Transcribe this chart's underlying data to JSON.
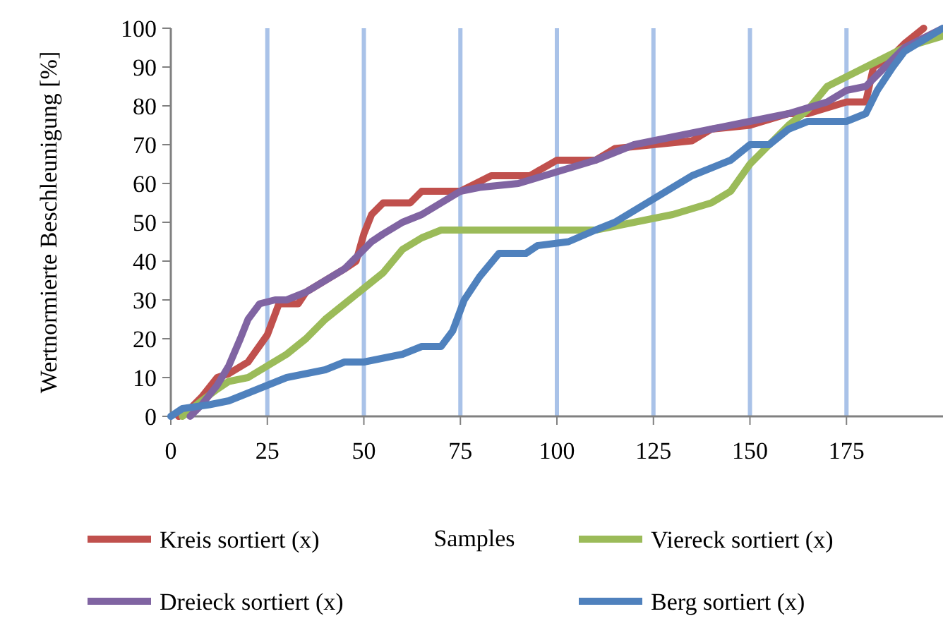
{
  "chart_data": {
    "type": "line",
    "xlabel": "Samples",
    "ylabel": "Wertnormierte Beschleunigung  [%]",
    "xlim": [
      0,
      200
    ],
    "xticks": [
      0,
      25,
      50,
      75,
      100,
      125,
      150,
      175
    ],
    "ylim": [
      0,
      100
    ],
    "yticks": [
      0,
      10,
      20,
      30,
      40,
      50,
      60,
      70,
      80,
      90,
      100
    ],
    "grid": "x",
    "legend": "bottom",
    "line_style": "solid",
    "series": [
      {
        "name": "Kreis sortiert (x)",
        "color": "#c0504d",
        "x": [
          2,
          5,
          8,
          12,
          15,
          20,
          25,
          28,
          33,
          35,
          40,
          45,
          48,
          50,
          52,
          55,
          62,
          65,
          75,
          83,
          93,
          100,
          110,
          115,
          125,
          135,
          140,
          150,
          160,
          165,
          175,
          180,
          182,
          187,
          190,
          195
        ],
        "values": [
          0,
          2,
          5,
          10,
          11,
          14,
          21,
          29,
          29,
          32,
          35,
          38,
          40,
          47,
          52,
          55,
          55,
          58,
          58,
          62,
          62,
          66,
          66,
          69,
          70,
          71,
          74,
          75,
          78,
          78,
          81,
          81,
          90,
          93,
          96,
          100
        ]
      },
      {
        "name": "Viereck sortiert (x)",
        "color": "#9bbb59",
        "x": [
          3,
          8,
          12,
          15,
          20,
          25,
          30,
          35,
          40,
          45,
          50,
          55,
          60,
          65,
          70,
          100,
          110,
          120,
          130,
          140,
          145,
          150,
          155,
          160,
          165,
          170,
          180,
          190,
          200
        ],
        "values": [
          0,
          4,
          7,
          9,
          10,
          13,
          16,
          20,
          25,
          29,
          33,
          37,
          43,
          46,
          48,
          48,
          48,
          50,
          52,
          55,
          58,
          65,
          70,
          75,
          79,
          85,
          90,
          95,
          98
        ]
      },
      {
        "name": "Dreieck sortiert (x)",
        "color": "#8064a2",
        "x": [
          5,
          8,
          12,
          15,
          18,
          20,
          23,
          27,
          30,
          35,
          40,
          45,
          48,
          52,
          55,
          60,
          65,
          70,
          75,
          80,
          90,
          100,
          110,
          120,
          130,
          140,
          150,
          160,
          170,
          175,
          180,
          185,
          190,
          200
        ],
        "values": [
          0,
          3,
          8,
          13,
          20,
          25,
          29,
          30,
          30,
          32,
          35,
          38,
          41,
          45,
          47,
          50,
          52,
          55,
          58,
          59,
          60,
          63,
          66,
          70,
          72,
          74,
          76,
          78,
          81,
          84,
          85,
          90,
          95,
          100
        ]
      },
      {
        "name": "Berg sortiert (x)",
        "color": "#4f81bd",
        "x": [
          0,
          3,
          10,
          15,
          20,
          25,
          30,
          35,
          40,
          45,
          50,
          55,
          60,
          65,
          70,
          73,
          76,
          80,
          85,
          92,
          95,
          103,
          110,
          115,
          125,
          135,
          145,
          150,
          155,
          160,
          165,
          175,
          180,
          183,
          187,
          190,
          195,
          200
        ],
        "values": [
          0,
          2,
          3,
          4,
          6,
          8,
          10,
          11,
          12,
          14,
          14,
          15,
          16,
          18,
          18,
          22,
          30,
          36,
          42,
          42,
          44,
          45,
          48,
          50,
          56,
          62,
          66,
          70,
          70,
          74,
          76,
          76,
          78,
          84,
          90,
          94,
          97,
          100
        ]
      }
    ]
  }
}
